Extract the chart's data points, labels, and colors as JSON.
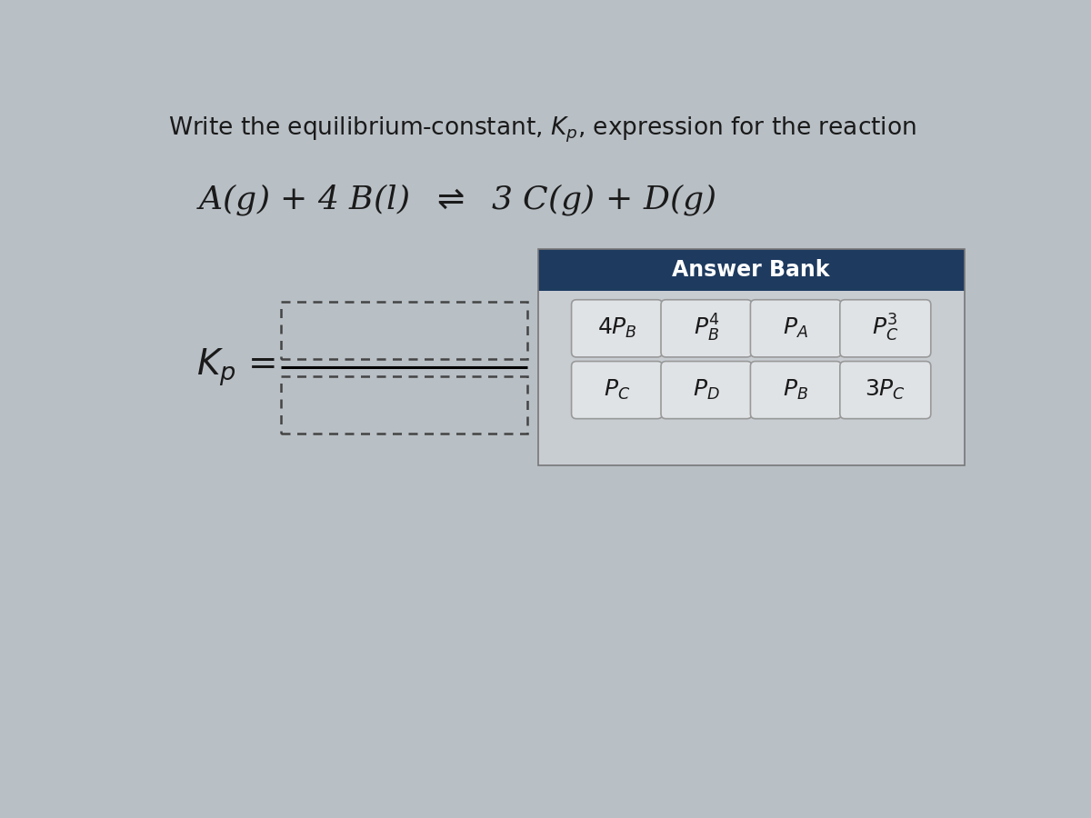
{
  "title_text": "Write the equilibrium-constant, $K_p$, expression for the reaction",
  "reaction_text": "A(g) + 4 B(l)  $\\rightleftharpoons$  3 C(g) + D(g)",
  "kp_label": "$K_p$ =",
  "answer_bank_title": "Answer Bank",
  "answer_bank_bg": "#1e3a5f",
  "answer_bank_title_color": "#ffffff",
  "buttons_row1": [
    "$4P_B$",
    "$P_B^4$",
    "$P_A$",
    "$P_C^3$"
  ],
  "buttons_row2": [
    "$P_C$",
    "$P_D$",
    "$P_B$",
    "$3P_C$"
  ],
  "button_bg": "#e0e3e6",
  "button_border": "#999999",
  "bg_color": "#b8bfc5",
  "panel_body_bg": "#c8cdd2",
  "dotted_box_color": "#444444",
  "fraction_line_color": "#000000",
  "text_color": "#1a1a1a",
  "title_fontsize": 19,
  "reaction_fontsize": 26,
  "kp_fontsize": 28,
  "btn_fontsize": 18,
  "answer_bank_fontsize": 17
}
